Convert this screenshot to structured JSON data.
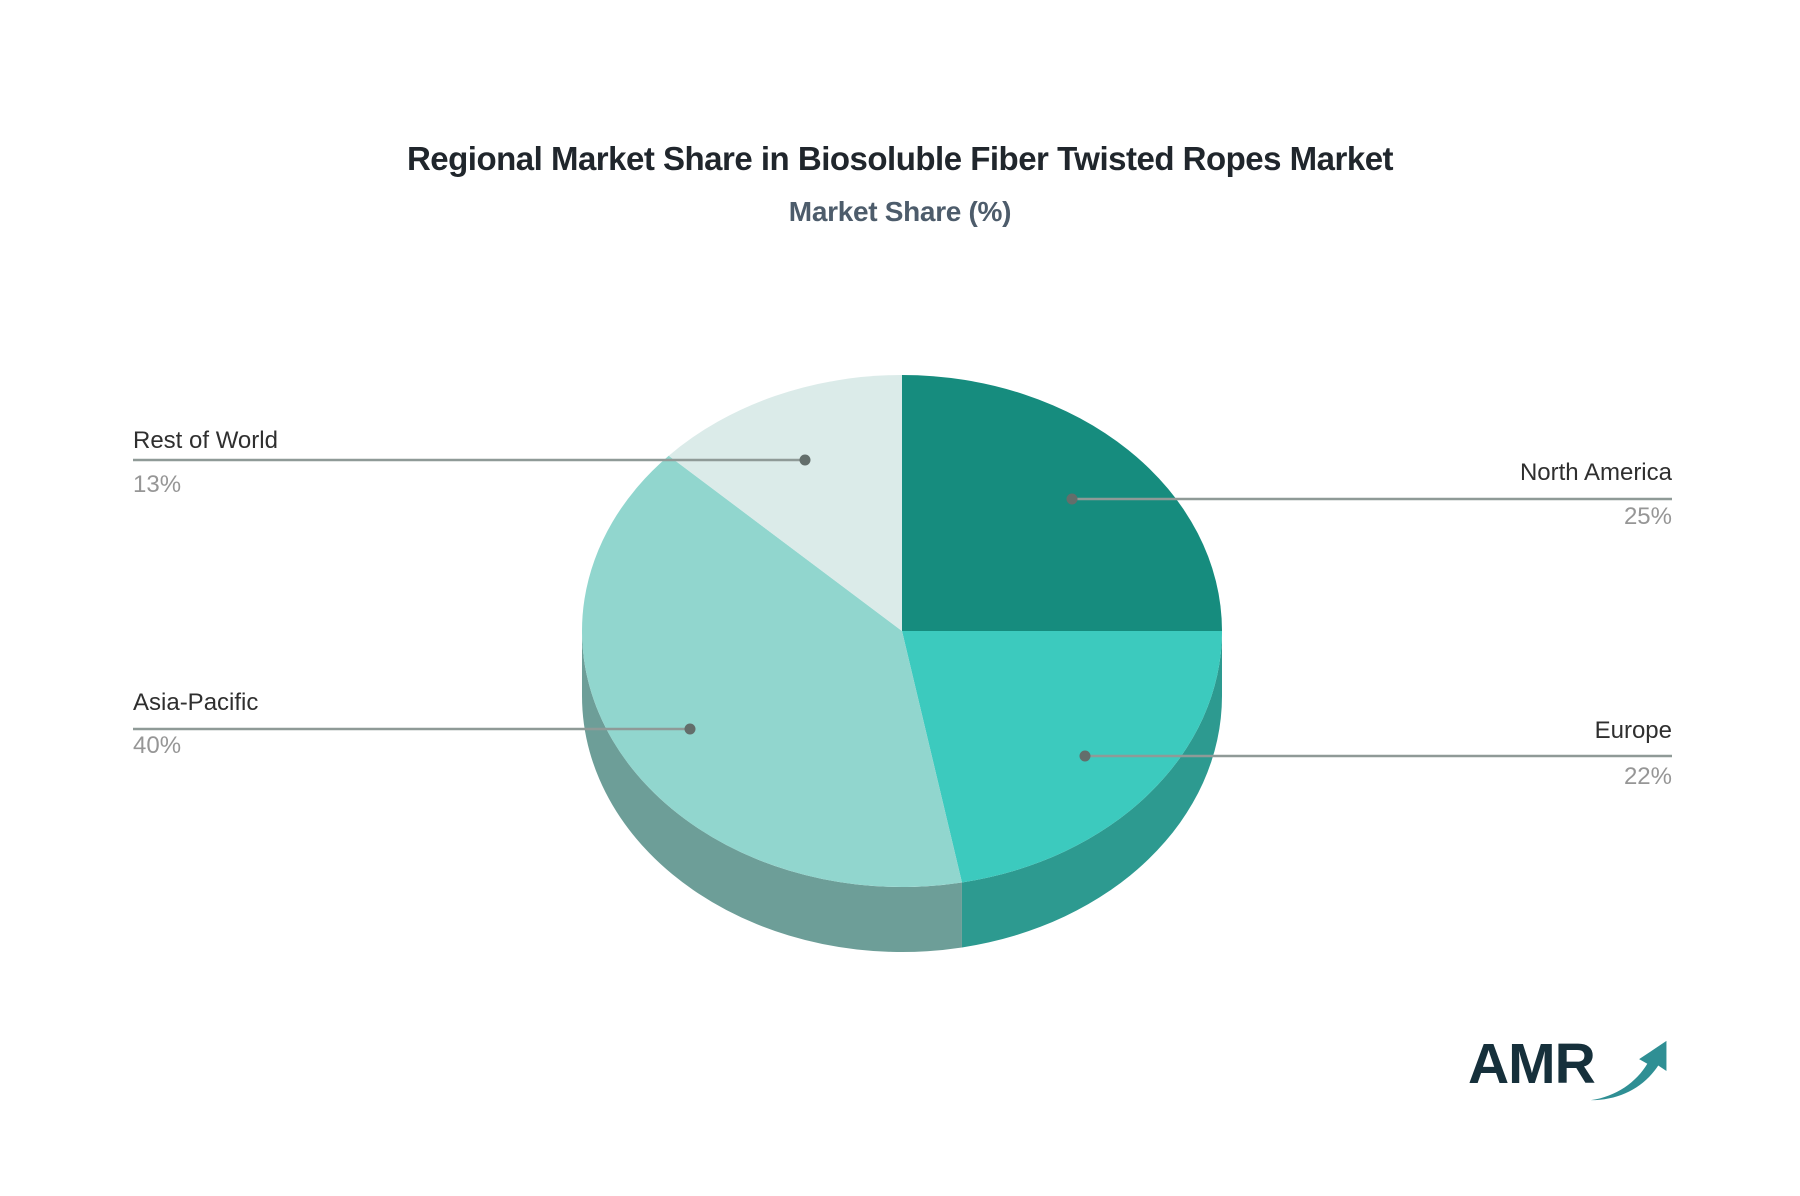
{
  "chart_data": {
    "type": "pie",
    "title": "Regional Market Share in Biosoluble Fiber Twisted Ropes Market",
    "subtitle": "Market Share (%)",
    "unit": "%",
    "effect": "3d",
    "start_angle_deg": 0,
    "direction": "clockwise",
    "legend_position": "none",
    "slices": [
      {
        "label": "North America",
        "value": 25,
        "pct_label": "25%",
        "color": "#168C7E",
        "rim": "#0F6E60"
      },
      {
        "label": "Europe",
        "value": 22,
        "pct_label": "22%",
        "color": "#3CCABE",
        "rim": "#2D9A90"
      },
      {
        "label": "Asia-Pacific",
        "value": 40,
        "pct_label": "40%",
        "color": "#91D6CE",
        "rim": "#6D9E98"
      },
      {
        "label": "Rest of World",
        "value": 13,
        "pct_label": "13%",
        "color": "#DBEBE9",
        "rim": "#AEC4C0"
      }
    ]
  },
  "leader_style": {
    "line_color": "#8f9a97",
    "dot_color": "#636e6b"
  },
  "logo": {
    "text": "AMR",
    "arrow_color": "#2F8F94"
  }
}
